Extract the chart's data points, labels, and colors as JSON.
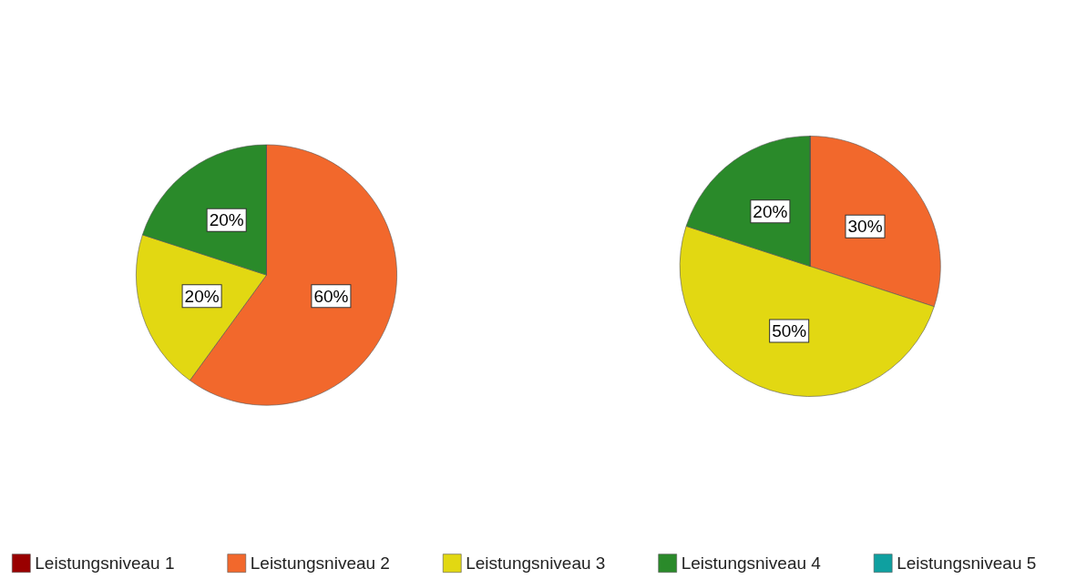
{
  "chart_data": {
    "type": "pie",
    "categories": [
      "Leistungsniveau 1",
      "Leistungsniveau 2",
      "Leistungsniveau 3",
      "Leistungsniveau 4",
      "Leistungsniveau 5"
    ],
    "colors": [
      "#990000",
      "#f2682c",
      "#e2d812",
      "#2a8a2a",
      "#0fa0a0"
    ],
    "series": [
      {
        "values": [
          0,
          60,
          20,
          20,
          0
        ],
        "value_labels": [
          null,
          "60%",
          "20%",
          "20%",
          null
        ]
      },
      {
        "values": [
          0,
          30,
          50,
          20,
          0
        ],
        "value_labels": [
          null,
          "30%",
          "50%",
          "20%",
          null
        ]
      }
    ],
    "legend": "bottom"
  }
}
